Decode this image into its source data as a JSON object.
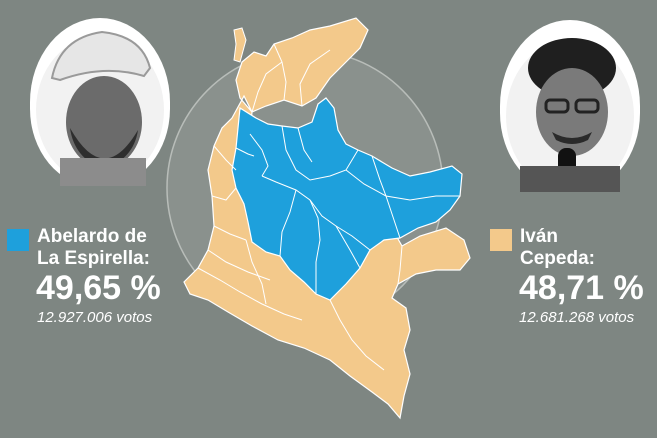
{
  "colors": {
    "background": "#7e8682",
    "winner_blue": "#1ea0dc",
    "runner_up_sand": "#f3c98b",
    "border": "#ffffff"
  },
  "candidates": [
    {
      "name": "Abelardo de\nLa Espirella:",
      "percent": "49,65 %",
      "votes": "12.927.006 votos",
      "color": "#1ea0dc",
      "portrait_icon": "man-white-cap-portrait"
    },
    {
      "name": "Iván\nCepeda:",
      "percent": "48,71 %",
      "votes": "12.681.268 votos",
      "color": "#f3c98b",
      "portrait_icon": "man-glasses-microphone-portrait"
    }
  ]
}
